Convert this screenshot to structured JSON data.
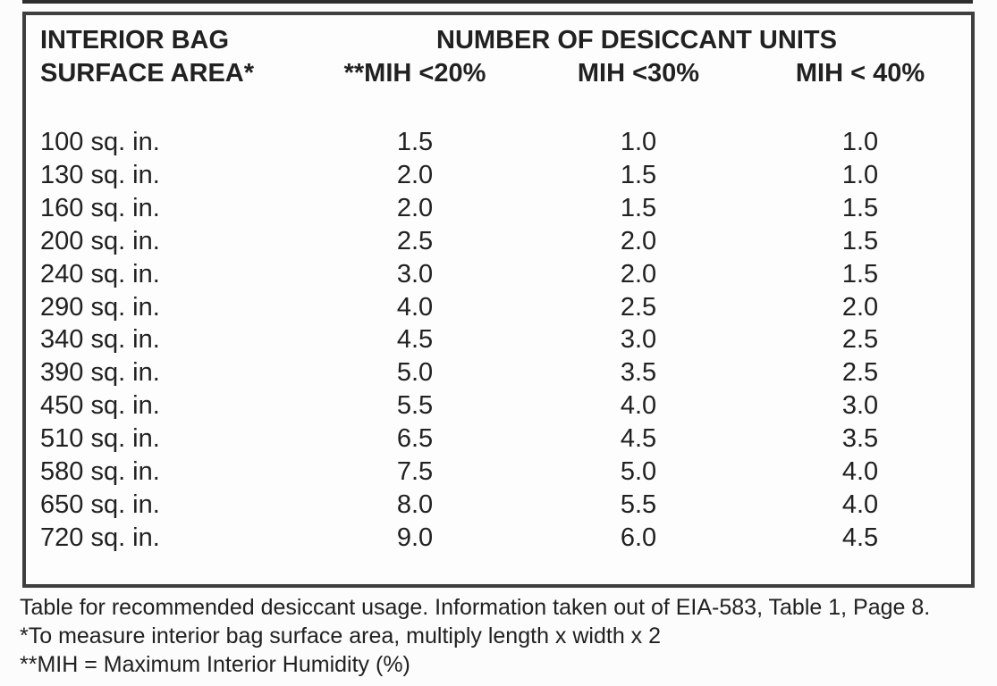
{
  "colors": {
    "background": "#fcfcfc",
    "table_border": "#3f3f3f",
    "text": "#212121"
  },
  "chart_data": {
    "type": "table",
    "group_header": "NUMBER OF DESICCANT UNITS",
    "row_header_lines": [
      "INTERIOR BAG",
      "SURFACE AREA*"
    ],
    "columns": [
      "**MIH <20%",
      "MIH <30%",
      "MIH < 40%"
    ],
    "rows": [
      [
        "100 sq. in.",
        "1.5",
        "1.0",
        "1.0"
      ],
      [
        "130 sq. in.",
        "2.0",
        "1.5",
        "1.0"
      ],
      [
        "160 sq. in.",
        "2.0",
        "1.5",
        "1.5"
      ],
      [
        "200 sq. in.",
        "2.5",
        "2.0",
        "1.5"
      ],
      [
        "240 sq. in.",
        "3.0",
        "2.0",
        "1.5"
      ],
      [
        "290 sq. in.",
        "4.0",
        "2.5",
        "2.0"
      ],
      [
        "340 sq. in.",
        "4.5",
        "3.0",
        "2.5"
      ],
      [
        "390 sq. in.",
        "5.0",
        "3.5",
        "2.5"
      ],
      [
        "450 sq. in.",
        "5.5",
        "4.0",
        "3.0"
      ],
      [
        "510 sq. in.",
        "6.5",
        "4.5",
        "3.5"
      ],
      [
        "580 sq. in.",
        "7.5",
        "5.0",
        "4.0"
      ],
      [
        "650 sq. in.",
        "8.0",
        "5.5",
        "4.0"
      ],
      [
        "720 sq. in.",
        "9.0",
        "6.0",
        "4.5"
      ]
    ]
  },
  "footnotes": {
    "caption": "Table for recommended desiccant usage. Information taken out of EIA-583, Table 1, Page 8.",
    "note_area": "*To measure interior bag surface area, multiply length x width x 2",
    "note_mih": "**MIH = Maximum Interior Humidity (%)"
  }
}
